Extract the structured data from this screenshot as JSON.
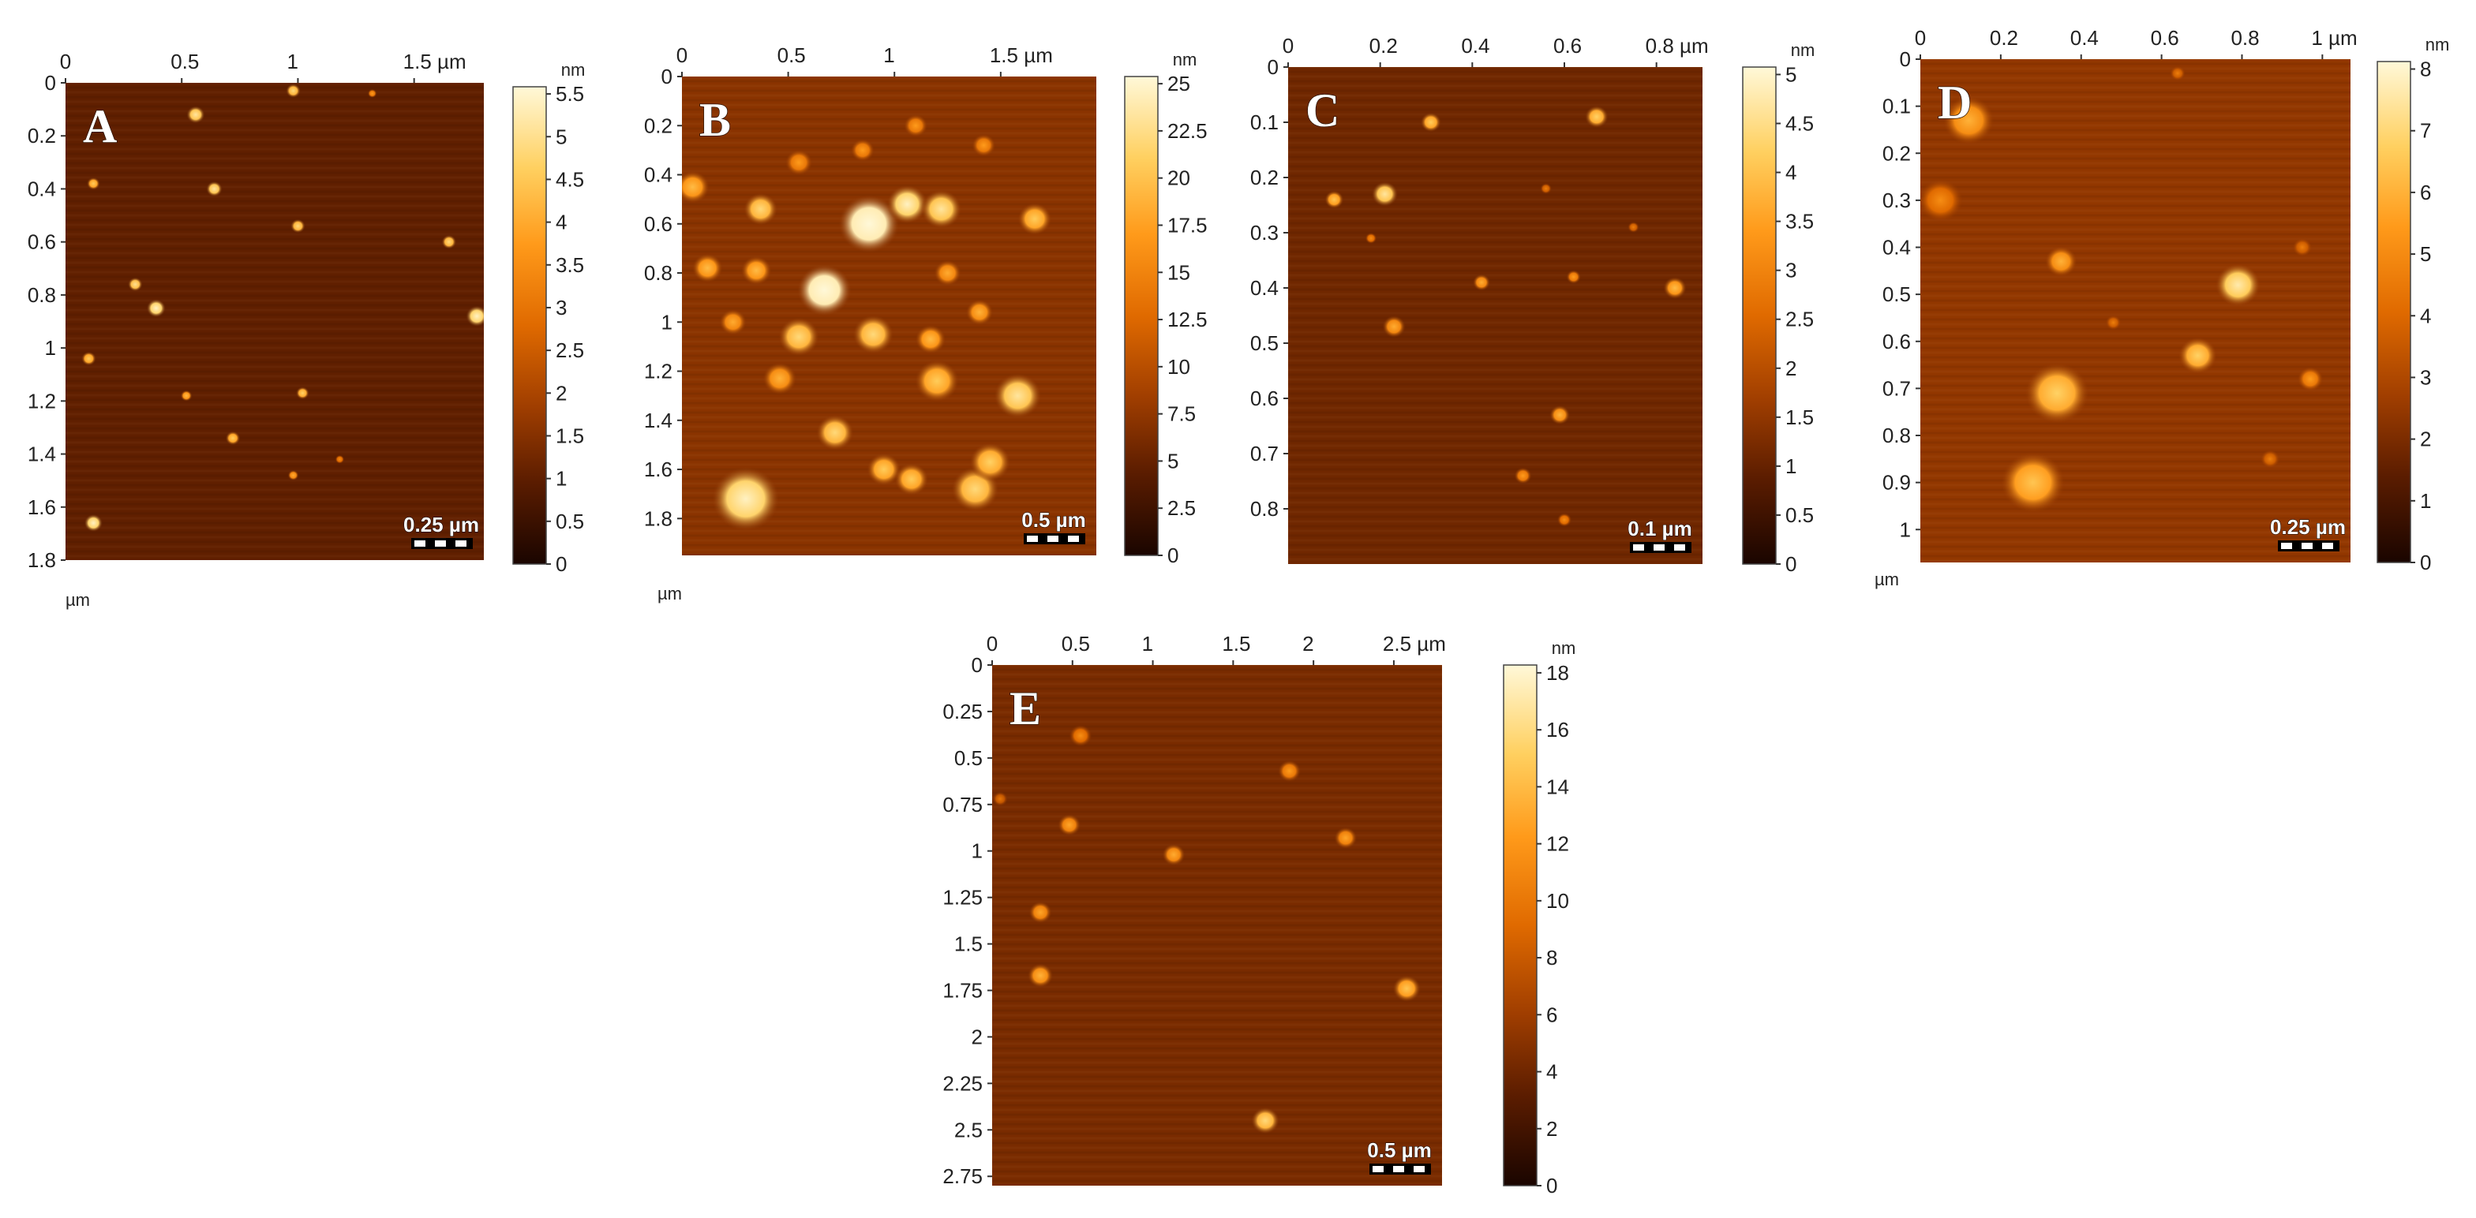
{
  "colors": {
    "colormap": [
      "#1a0500",
      "#5a1c00",
      "#a03e00",
      "#e06a00",
      "#ff9a1a",
      "#ffd060",
      "#fff8d8"
    ],
    "background": "#ffffff"
  },
  "panels": [
    {
      "label": "A",
      "x_ticks": [
        {
          "v": 0,
          "t": "0"
        },
        {
          "v": 0.5,
          "t": "0.5"
        },
        {
          "v": 1,
          "t": "1"
        },
        {
          "v": 1.5,
          "t": "1.5 µm"
        }
      ],
      "y_ticks": [
        {
          "v": 0,
          "t": "0"
        },
        {
          "v": 0.2,
          "t": "0.2"
        },
        {
          "v": 0.4,
          "t": "0.4"
        },
        {
          "v": 0.6,
          "t": "0.6"
        },
        {
          "v": 0.8,
          "t": "0.8"
        },
        {
          "v": 1,
          "t": "1"
        },
        {
          "v": 1.2,
          "t": "1.2"
        },
        {
          "v": 1.4,
          "t": "1.4"
        },
        {
          "v": 1.6,
          "t": "1.6"
        },
        {
          "v": 1.8,
          "t": "1.8"
        }
      ],
      "axis_unit": "µm",
      "colorbar_unit": "nm",
      "colorbar_ticks": [
        "0",
        "0.5",
        "1",
        "1.5",
        "2",
        "2.5",
        "3",
        "3.5",
        "4",
        "4.5",
        "5",
        "5.5"
      ],
      "scale_bar": "0.25 µm",
      "base_level": 0.18,
      "particles": [
        {
          "x": 0.56,
          "y": 0.12,
          "r": 0.025,
          "h": 0.8
        },
        {
          "x": 0.98,
          "y": 0.03,
          "r": 0.02,
          "h": 0.75
        },
        {
          "x": 1.32,
          "y": 0.04,
          "r": 0.012,
          "h": 0.55
        },
        {
          "x": 0.12,
          "y": 0.38,
          "r": 0.018,
          "h": 0.7
        },
        {
          "x": 0.64,
          "y": 0.4,
          "r": 0.022,
          "h": 0.8
        },
        {
          "x": 1.0,
          "y": 0.54,
          "r": 0.02,
          "h": 0.75
        },
        {
          "x": 1.65,
          "y": 0.6,
          "r": 0.02,
          "h": 0.75
        },
        {
          "x": 0.3,
          "y": 0.76,
          "r": 0.02,
          "h": 0.78
        },
        {
          "x": 0.39,
          "y": 0.85,
          "r": 0.026,
          "h": 0.85
        },
        {
          "x": 1.77,
          "y": 0.88,
          "r": 0.03,
          "h": 0.85
        },
        {
          "x": 0.1,
          "y": 1.04,
          "r": 0.02,
          "h": 0.7
        },
        {
          "x": 0.52,
          "y": 1.18,
          "r": 0.016,
          "h": 0.65
        },
        {
          "x": 1.02,
          "y": 1.17,
          "r": 0.018,
          "h": 0.72
        },
        {
          "x": 0.72,
          "y": 1.34,
          "r": 0.02,
          "h": 0.7
        },
        {
          "x": 0.98,
          "y": 1.48,
          "r": 0.015,
          "h": 0.6
        },
        {
          "x": 1.18,
          "y": 1.42,
          "r": 0.012,
          "h": 0.5
        },
        {
          "x": 0.12,
          "y": 1.66,
          "r": 0.025,
          "h": 0.85
        }
      ]
    },
    {
      "label": "B",
      "x_ticks": [
        {
          "v": 0,
          "t": "0"
        },
        {
          "v": 0.5,
          "t": "0.5"
        },
        {
          "v": 1,
          "t": "1"
        },
        {
          "v": 1.5,
          "t": "1.5 µm"
        }
      ],
      "y_ticks": [
        {
          "v": 0,
          "t": "0"
        },
        {
          "v": 0.2,
          "t": "0.2"
        },
        {
          "v": 0.4,
          "t": "0.4"
        },
        {
          "v": 0.6,
          "t": "0.6"
        },
        {
          "v": 0.8,
          "t": "0.8"
        },
        {
          "v": 1,
          "t": "1"
        },
        {
          "v": 1.2,
          "t": "1.2"
        },
        {
          "v": 1.4,
          "t": "1.4"
        },
        {
          "v": 1.6,
          "t": "1.6"
        },
        {
          "v": 1.8,
          "t": "1.8"
        }
      ],
      "axis_unit": "µm",
      "colorbar_unit": "nm",
      "colorbar_ticks": [
        "0",
        "2.5",
        "5",
        "7.5",
        "10",
        "12.5",
        "15",
        "17.5",
        "20",
        "22.5",
        "25"
      ],
      "scale_bar": "0.5 µm",
      "base_level": 0.28,
      "particles": [
        {
          "x": 0.88,
          "y": 0.6,
          "r": 0.09,
          "h": 0.95
        },
        {
          "x": 1.06,
          "y": 0.52,
          "r": 0.06,
          "h": 0.85
        },
        {
          "x": 1.22,
          "y": 0.54,
          "r": 0.06,
          "h": 0.8
        },
        {
          "x": 0.67,
          "y": 0.87,
          "r": 0.08,
          "h": 0.95
        },
        {
          "x": 0.37,
          "y": 0.54,
          "r": 0.05,
          "h": 0.75
        },
        {
          "x": 0.05,
          "y": 0.45,
          "r": 0.05,
          "h": 0.65
        },
        {
          "x": 0.12,
          "y": 0.78,
          "r": 0.045,
          "h": 0.65
        },
        {
          "x": 0.35,
          "y": 0.79,
          "r": 0.045,
          "h": 0.65
        },
        {
          "x": 0.55,
          "y": 1.06,
          "r": 0.06,
          "h": 0.75
        },
        {
          "x": 0.9,
          "y": 1.05,
          "r": 0.06,
          "h": 0.75
        },
        {
          "x": 1.17,
          "y": 1.07,
          "r": 0.045,
          "h": 0.65
        },
        {
          "x": 1.2,
          "y": 1.24,
          "r": 0.065,
          "h": 0.7
        },
        {
          "x": 1.58,
          "y": 1.3,
          "r": 0.07,
          "h": 0.8
        },
        {
          "x": 0.72,
          "y": 1.45,
          "r": 0.055,
          "h": 0.75
        },
        {
          "x": 0.3,
          "y": 1.72,
          "r": 0.1,
          "h": 0.85
        },
        {
          "x": 0.95,
          "y": 1.6,
          "r": 0.05,
          "h": 0.7
        },
        {
          "x": 1.08,
          "y": 1.64,
          "r": 0.05,
          "h": 0.7
        },
        {
          "x": 1.38,
          "y": 1.68,
          "r": 0.07,
          "h": 0.75
        },
        {
          "x": 1.45,
          "y": 1.57,
          "r": 0.06,
          "h": 0.72
        },
        {
          "x": 1.66,
          "y": 0.58,
          "r": 0.05,
          "h": 0.7
        },
        {
          "x": 1.4,
          "y": 0.96,
          "r": 0.04,
          "h": 0.62
        },
        {
          "x": 0.24,
          "y": 1.0,
          "r": 0.04,
          "h": 0.6
        },
        {
          "x": 0.46,
          "y": 1.23,
          "r": 0.05,
          "h": 0.62
        },
        {
          "x": 1.1,
          "y": 0.2,
          "r": 0.035,
          "h": 0.55
        },
        {
          "x": 0.55,
          "y": 0.35,
          "r": 0.04,
          "h": 0.55
        },
        {
          "x": 1.42,
          "y": 0.28,
          "r": 0.035,
          "h": 0.55
        },
        {
          "x": 0.85,
          "y": 0.3,
          "r": 0.035,
          "h": 0.55
        },
        {
          "x": 1.25,
          "y": 0.8,
          "r": 0.04,
          "h": 0.6
        }
      ]
    },
    {
      "label": "C",
      "x_ticks": [
        {
          "v": 0,
          "t": "0"
        },
        {
          "v": 0.2,
          "t": "0.2"
        },
        {
          "v": 0.4,
          "t": "0.4"
        },
        {
          "v": 0.6,
          "t": "0.6"
        },
        {
          "v": 0.8,
          "t": "0.8 µm"
        }
      ],
      "y_ticks": [
        {
          "v": 0,
          "t": "0"
        },
        {
          "v": 0.1,
          "t": "0.1"
        },
        {
          "v": 0.2,
          "t": "0.2"
        },
        {
          "v": 0.3,
          "t": "0.3"
        },
        {
          "v": 0.4,
          "t": "0.4"
        },
        {
          "v": 0.5,
          "t": "0.5"
        },
        {
          "v": 0.6,
          "t": "0.6"
        },
        {
          "v": 0.7,
          "t": "0.7"
        },
        {
          "v": 0.8,
          "t": "0.8"
        }
      ],
      "axis_unit": "",
      "colorbar_unit": "nm",
      "colorbar_ticks": [
        "0",
        "0.5",
        "1",
        "1.5",
        "2",
        "2.5",
        "3",
        "3.5",
        "4",
        "4.5",
        "5"
      ],
      "scale_bar": "0.1 µm",
      "base_level": 0.22,
      "particles": [
        {
          "x": 0.31,
          "y": 0.1,
          "r": 0.014,
          "h": 0.7
        },
        {
          "x": 0.67,
          "y": 0.09,
          "r": 0.016,
          "h": 0.72
        },
        {
          "x": 0.1,
          "y": 0.24,
          "r": 0.013,
          "h": 0.68
        },
        {
          "x": 0.21,
          "y": 0.23,
          "r": 0.018,
          "h": 0.8
        },
        {
          "x": 0.18,
          "y": 0.31,
          "r": 0.008,
          "h": 0.5
        },
        {
          "x": 0.42,
          "y": 0.39,
          "r": 0.012,
          "h": 0.6
        },
        {
          "x": 0.62,
          "y": 0.38,
          "r": 0.01,
          "h": 0.55
        },
        {
          "x": 0.84,
          "y": 0.4,
          "r": 0.016,
          "h": 0.65
        },
        {
          "x": 0.23,
          "y": 0.47,
          "r": 0.016,
          "h": 0.6
        },
        {
          "x": 0.59,
          "y": 0.63,
          "r": 0.014,
          "h": 0.62
        },
        {
          "x": 0.51,
          "y": 0.74,
          "r": 0.012,
          "h": 0.55
        },
        {
          "x": 0.6,
          "y": 0.82,
          "r": 0.01,
          "h": 0.5
        },
        {
          "x": 0.56,
          "y": 0.22,
          "r": 0.008,
          "h": 0.45
        },
        {
          "x": 0.75,
          "y": 0.29,
          "r": 0.008,
          "h": 0.45
        }
      ]
    },
    {
      "label": "D",
      "x_ticks": [
        {
          "v": 0,
          "t": "0"
        },
        {
          "v": 0.2,
          "t": "0.2"
        },
        {
          "v": 0.4,
          "t": "0.4"
        },
        {
          "v": 0.6,
          "t": "0.6"
        },
        {
          "v": 0.8,
          "t": "0.8"
        },
        {
          "v": 1,
          "t": "1 µm"
        }
      ],
      "y_ticks": [
        {
          "v": 0,
          "t": "0"
        },
        {
          "v": 0.1,
          "t": "0.1"
        },
        {
          "v": 0.2,
          "t": "0.2"
        },
        {
          "v": 0.3,
          "t": "0.3"
        },
        {
          "v": 0.4,
          "t": "0.4"
        },
        {
          "v": 0.5,
          "t": "0.5"
        },
        {
          "v": 0.6,
          "t": "0.6"
        },
        {
          "v": 0.7,
          "t": "0.7"
        },
        {
          "v": 0.8,
          "t": "0.8"
        },
        {
          "v": 0.9,
          "t": "0.9"
        },
        {
          "v": 1,
          "t": "1"
        }
      ],
      "axis_unit": "µm",
      "colorbar_unit": "nm",
      "colorbar_ticks": [
        "0",
        "1",
        "2",
        "3",
        "4",
        "5",
        "6",
        "7",
        "8"
      ],
      "scale_bar": "0.25 µm",
      "base_level": 0.3,
      "particles": [
        {
          "x": 0.12,
          "y": 0.13,
          "r": 0.04,
          "h": 0.62
        },
        {
          "x": 0.05,
          "y": 0.3,
          "r": 0.035,
          "h": 0.5
        },
        {
          "x": 0.35,
          "y": 0.43,
          "r": 0.025,
          "h": 0.62
        },
        {
          "x": 0.79,
          "y": 0.48,
          "r": 0.035,
          "h": 0.82
        },
        {
          "x": 0.69,
          "y": 0.63,
          "r": 0.03,
          "h": 0.72
        },
        {
          "x": 0.34,
          "y": 0.71,
          "r": 0.05,
          "h": 0.72
        },
        {
          "x": 0.28,
          "y": 0.9,
          "r": 0.05,
          "h": 0.68
        },
        {
          "x": 0.97,
          "y": 0.68,
          "r": 0.02,
          "h": 0.55
        },
        {
          "x": 0.87,
          "y": 0.85,
          "r": 0.015,
          "h": 0.45
        },
        {
          "x": 0.48,
          "y": 0.56,
          "r": 0.012,
          "h": 0.45
        },
        {
          "x": 0.95,
          "y": 0.4,
          "r": 0.015,
          "h": 0.45
        },
        {
          "x": 0.64,
          "y": 0.03,
          "r": 0.012,
          "h": 0.45
        }
      ]
    },
    {
      "label": "E",
      "x_ticks": [
        {
          "v": 0,
          "t": "0"
        },
        {
          "v": 0.5,
          "t": "0.5"
        },
        {
          "v": 1,
          "t": "1"
        },
        {
          "v": 1.5,
          "t": "1.5"
        },
        {
          "v": 2,
          "t": "2"
        },
        {
          "v": 2.5,
          "t": "2.5 µm"
        }
      ],
      "y_ticks": [
        {
          "v": 0,
          "t": "0"
        },
        {
          "v": 0.25,
          "t": "0.25"
        },
        {
          "v": 0.5,
          "t": "0.5"
        },
        {
          "v": 0.75,
          "t": "0.75"
        },
        {
          "v": 1,
          "t": "1"
        },
        {
          "v": 1.25,
          "t": "1.25"
        },
        {
          "v": 1.5,
          "t": "1.5"
        },
        {
          "v": 1.75,
          "t": "1.75"
        },
        {
          "v": 2,
          "t": "2"
        },
        {
          "v": 2.25,
          "t": "2.25"
        },
        {
          "v": 2.5,
          "t": "2.5"
        },
        {
          "v": 2.75,
          "t": "2.75"
        }
      ],
      "axis_unit": "",
      "colorbar_unit": "nm",
      "colorbar_ticks": [
        "0",
        "2",
        "4",
        "6",
        "8",
        "10",
        "12",
        "14",
        "16",
        "18"
      ],
      "scale_bar": "0.5 µm",
      "base_level": 0.24,
      "particles": [
        {
          "x": 0.55,
          "y": 0.38,
          "r": 0.045,
          "h": 0.5
        },
        {
          "x": 1.85,
          "y": 0.57,
          "r": 0.045,
          "h": 0.55
        },
        {
          "x": 0.48,
          "y": 0.86,
          "r": 0.045,
          "h": 0.58
        },
        {
          "x": 2.2,
          "y": 0.93,
          "r": 0.045,
          "h": 0.58
        },
        {
          "x": 1.13,
          "y": 1.02,
          "r": 0.045,
          "h": 0.6
        },
        {
          "x": 0.3,
          "y": 1.33,
          "r": 0.045,
          "h": 0.58
        },
        {
          "x": 0.3,
          "y": 1.67,
          "r": 0.05,
          "h": 0.62
        },
        {
          "x": 2.58,
          "y": 1.74,
          "r": 0.055,
          "h": 0.68
        },
        {
          "x": 1.7,
          "y": 2.45,
          "r": 0.055,
          "h": 0.75
        },
        {
          "x": 0.05,
          "y": 0.72,
          "r": 0.03,
          "h": 0.42
        }
      ]
    }
  ]
}
